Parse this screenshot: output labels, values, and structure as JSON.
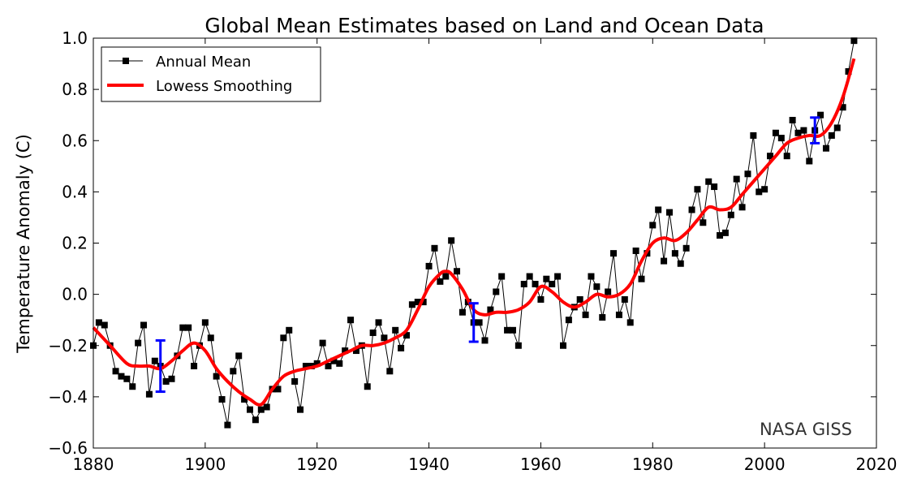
{
  "chart_data": {
    "type": "line",
    "title": "Global Mean Estimates based on Land and Ocean Data",
    "xlabel": "",
    "ylabel": "Temperature Anomaly (C)",
    "xlim": [
      1880,
      2020
    ],
    "ylim": [
      -0.6,
      1.0
    ],
    "xticks": [
      1880,
      1900,
      1920,
      1940,
      1960,
      1980,
      2000,
      2020
    ],
    "xtick_labels": [
      "1880",
      "1900",
      "1920",
      "1940",
      "1960",
      "1980",
      "2000",
      "2020"
    ],
    "yticks": [
      -0.6,
      -0.4,
      -0.2,
      0.0,
      0.2,
      0.4,
      0.6,
      0.8,
      1.0
    ],
    "ytick_labels": [
      "−0.6",
      "−0.4",
      "−0.2",
      "0.0",
      "0.2",
      "0.4",
      "0.6",
      "0.8",
      "1.0"
    ],
    "grid": false,
    "legend_position": "top-left",
    "annotation": "NASA GISS",
    "series": [
      {
        "name": "Annual Mean",
        "color": "#000000",
        "marker": "square",
        "x_start": 1880,
        "values": [
          -0.2,
          -0.11,
          -0.12,
          -0.2,
          -0.3,
          -0.32,
          -0.33,
          -0.36,
          -0.19,
          -0.12,
          -0.39,
          -0.26,
          -0.28,
          -0.34,
          -0.33,
          -0.24,
          -0.13,
          -0.13,
          -0.28,
          -0.2,
          -0.11,
          -0.17,
          -0.32,
          -0.41,
          -0.51,
          -0.3,
          -0.24,
          -0.41,
          -0.45,
          -0.49,
          -0.45,
          -0.44,
          -0.37,
          -0.37,
          -0.17,
          -0.14,
          -0.34,
          -0.45,
          -0.28,
          -0.28,
          -0.27,
          -0.19,
          -0.28,
          -0.26,
          -0.27,
          -0.22,
          -0.1,
          -0.22,
          -0.2,
          -0.36,
          -0.15,
          -0.11,
          -0.17,
          -0.3,
          -0.14,
          -0.21,
          -0.16,
          -0.04,
          -0.03,
          -0.03,
          0.11,
          0.18,
          0.05,
          0.07,
          0.21,
          0.09,
          -0.07,
          -0.03,
          -0.11,
          -0.11,
          -0.18,
          -0.06,
          0.01,
          0.07,
          -0.14,
          -0.14,
          -0.2,
          0.04,
          0.07,
          0.04,
          -0.02,
          0.06,
          0.04,
          0.07,
          -0.2,
          -0.1,
          -0.05,
          -0.02,
          -0.08,
          0.07,
          0.03,
          -0.09,
          0.01,
          0.16,
          -0.08,
          -0.02,
          -0.11,
          0.17,
          0.06,
          0.16,
          0.27,
          0.33,
          0.13,
          0.32,
          0.16,
          0.12,
          0.18,
          0.33,
          0.41,
          0.28,
          0.44,
          0.42,
          0.23,
          0.24,
          0.31,
          0.45,
          0.34,
          0.47,
          0.62,
          0.4,
          0.41,
          0.54,
          0.63,
          0.61,
          0.54,
          0.68,
          0.63,
          0.64,
          0.52,
          0.64,
          0.7,
          0.57,
          0.62,
          0.65,
          0.73,
          0.87,
          0.99
        ]
      },
      {
        "name": "Lowess Smoothing",
        "color": "#ff0000",
        "x": [
          1880,
          1883,
          1886,
          1888,
          1890,
          1892,
          1894,
          1896,
          1898,
          1900,
          1902,
          1904,
          1906,
          1908,
          1910,
          1912,
          1914,
          1916,
          1918,
          1920,
          1922,
          1924,
          1926,
          1928,
          1930,
          1932,
          1934,
          1936,
          1938,
          1940,
          1942,
          1943,
          1944,
          1946,
          1948,
          1950,
          1952,
          1954,
          1956,
          1958,
          1960,
          1962,
          1964,
          1966,
          1968,
          1970,
          1972,
          1974,
          1976,
          1978,
          1980,
          1982,
          1984,
          1986,
          1988,
          1990,
          1992,
          1994,
          1996,
          1998,
          2000,
          2002,
          2004,
          2006,
          2008,
          2010,
          2012,
          2014,
          2016
        ],
        "values": [
          -0.13,
          -0.2,
          -0.27,
          -0.28,
          -0.28,
          -0.29,
          -0.26,
          -0.22,
          -0.19,
          -0.22,
          -0.29,
          -0.34,
          -0.38,
          -0.41,
          -0.43,
          -0.37,
          -0.32,
          -0.3,
          -0.29,
          -0.28,
          -0.26,
          -0.24,
          -0.22,
          -0.2,
          -0.2,
          -0.19,
          -0.17,
          -0.14,
          -0.06,
          0.03,
          0.08,
          0.09,
          0.08,
          0.02,
          -0.06,
          -0.08,
          -0.07,
          -0.07,
          -0.06,
          -0.03,
          0.03,
          0.01,
          -0.03,
          -0.05,
          -0.03,
          0.0,
          -0.01,
          0.0,
          0.04,
          0.13,
          0.2,
          0.22,
          0.21,
          0.24,
          0.29,
          0.34,
          0.33,
          0.34,
          0.39,
          0.44,
          0.49,
          0.54,
          0.59,
          0.61,
          0.62,
          0.62,
          0.67,
          0.77,
          0.92
        ]
      }
    ],
    "error_bars": {
      "color": "#0000ff",
      "items": [
        {
          "x": 1892,
          "low": -0.38,
          "high": -0.18
        },
        {
          "x": 1948,
          "low": -0.185,
          "high": -0.035
        },
        {
          "x": 2009,
          "low": 0.59,
          "high": 0.69
        }
      ]
    }
  }
}
